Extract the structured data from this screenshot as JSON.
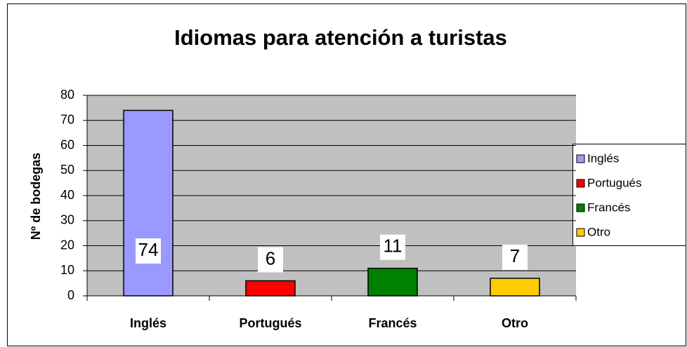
{
  "chart_data": {
    "type": "bar",
    "title": "Idiomas para atención a turistas",
    "y_label": "Nº de bodegas",
    "categories": [
      "Inglés",
      "Portugués",
      "Francés",
      "Otro"
    ],
    "values": [
      74,
      6,
      11,
      7
    ],
    "colors": [
      "#9999ff",
      "#ff0000",
      "#008000",
      "#ffcc00"
    ],
    "ylim": [
      0,
      80
    ],
    "yticks": [
      0,
      10,
      20,
      30,
      40,
      50,
      60,
      70,
      80
    ],
    "grid": true,
    "legend": "right"
  }
}
